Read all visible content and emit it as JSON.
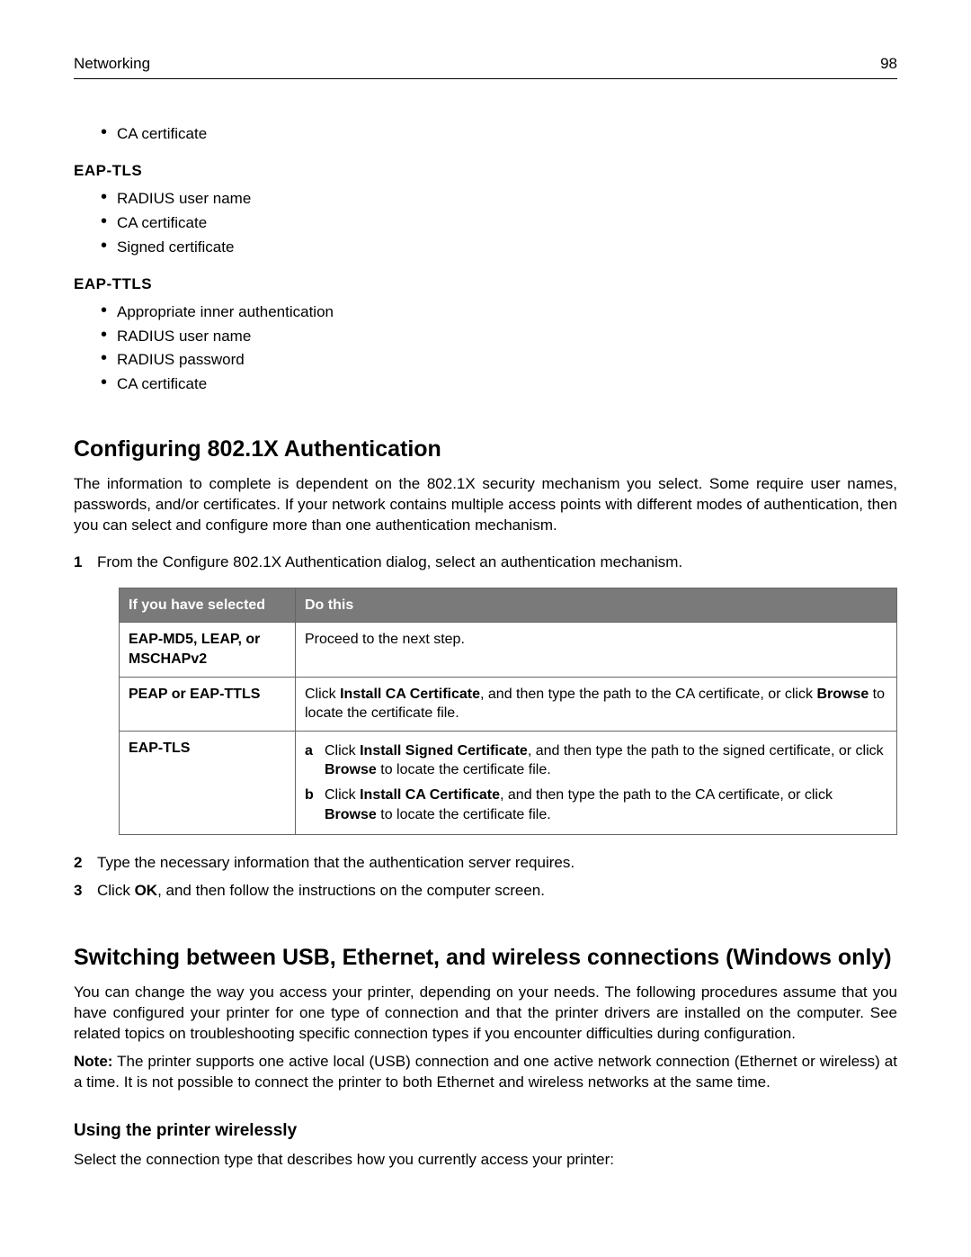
{
  "header": {
    "section": "Networking",
    "page": "98"
  },
  "pre_bullets": {
    "items": [
      "CA certificate"
    ]
  },
  "eap_tls": {
    "title": "EAP‑TLS",
    "items": [
      "RADIUS user name",
      "CA certificate",
      "Signed certificate"
    ]
  },
  "eap_ttls": {
    "title": "EAP‑TTLS",
    "items": [
      "Appropriate inner authentication",
      "RADIUS user name",
      "RADIUS password",
      "CA certificate"
    ]
  },
  "section1": {
    "title": "Configuring 802.1X Authentication",
    "intro": "The information to complete is dependent on the 802.1X security mechanism you select. Some require user names, passwords, and/or certificates. If your network contains multiple access points with different modes of authentication, then you can select and configure more than one authentication mechanism.",
    "step1": "From the Configure 802.1X Authentication dialog, select an authentication mechanism.",
    "table": {
      "columns": [
        "If you have selected",
        "Do this"
      ],
      "rows": [
        {
          "left_html": "<b>EAP-MD5</b>, <b>LEAP</b>, or <b>MSCHAPv2</b>",
          "right_html": "Proceed to the next step."
        },
        {
          "left_html": "<b>PEAP</b> or <b>EAP-TTLS</b>",
          "right_html": "Click <b>Install CA Certificate</b>, and then type the path to the CA certificate, or click <b>Browse</b> to locate the certificate file."
        },
        {
          "left_html": "<b>EAP-TLS</b>",
          "right_sub": [
            "Click <b>Install Signed Certificate</b>, and then type the path to the signed certificate, or click <b>Browse</b> to locate the certificate file.",
            "Click <b>Install CA Certificate</b>, and then type the path to the CA certificate, or click <b>Browse</b> to locate the certificate file."
          ]
        }
      ]
    },
    "step2": "Type the necessary information that the authentication server requires.",
    "step3_html": "Click <b>OK</b>, and then follow the instructions on the computer screen."
  },
  "section2": {
    "title": "Switching between USB, Ethernet, and wireless connections (Windows only)",
    "p1": "You can change the way you access your printer, depending on your needs. The following procedures assume that you have configured your printer for one type of connection and that the printer drivers are installed on the computer. See related topics on troubleshooting specific connection types if you encounter difficulties during configuration.",
    "note_html": "<b>Note:</b> The printer supports one active local (USB) connection and one active network connection (Ethernet or wireless) at a time. It is not possible to connect the printer to both Ethernet and wireless networks at the same time.",
    "sub_title": "Using the printer wirelessly",
    "p2": "Select the connection type that describes how you currently access your printer:"
  }
}
